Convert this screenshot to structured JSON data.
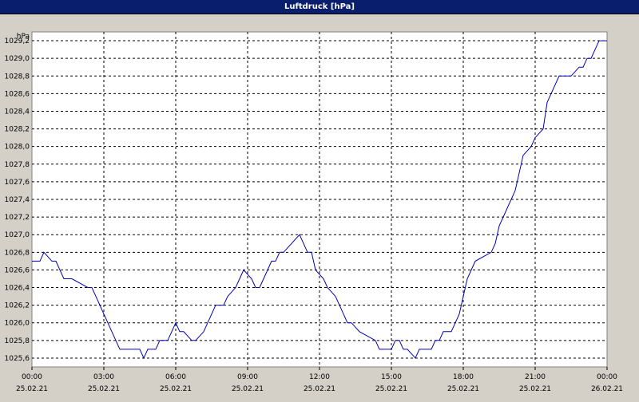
{
  "window": {
    "title": "Luftdruck [hPa]"
  },
  "colors": {
    "titlebar": "#0a1e6e",
    "plot_bg": "#ffffff",
    "line": "#0000b0",
    "grid": "#000000",
    "window_bg": "#d4d0c8"
  },
  "chart_data": {
    "type": "line",
    "title": "Luftdruck [hPa]",
    "unit_label": "hPa",
    "ylim": [
      1025.5,
      1029.3
    ],
    "yticks": [
      1025.6,
      1025.8,
      1026.0,
      1026.2,
      1026.4,
      1026.6,
      1026.8,
      1027.0,
      1027.2,
      1027.4,
      1027.6,
      1027.8,
      1028.0,
      1028.2,
      1028.4,
      1028.6,
      1028.8,
      1029.0,
      1029.2
    ],
    "ytick_labels": [
      "1025,6",
      "1025,8",
      "1026,0",
      "1026,2",
      "1026,4",
      "1026,6",
      "1026,8",
      "1027,0",
      "1027,2",
      "1027,4",
      "1027,6",
      "1027,8",
      "1028,0",
      "1028,2",
      "1028,4",
      "1028,6",
      "1028,8",
      "1029,0",
      "1029,2"
    ],
    "xlim": [
      "25.02.21 00:00",
      "26.02.21 00:00"
    ],
    "xticks": [
      {
        "time": "00:00",
        "date": "25.02.21"
      },
      {
        "time": "03:00",
        "date": "25.02.21"
      },
      {
        "time": "06:00",
        "date": "25.02.21"
      },
      {
        "time": "09:00",
        "date": "25.02.21"
      },
      {
        "time": "12:00",
        "date": "25.02.21"
      },
      {
        "time": "15:00",
        "date": "25.02.21"
      },
      {
        "time": "18:00",
        "date": "25.02.21"
      },
      {
        "time": "21:00",
        "date": "25.02.21"
      },
      {
        "time": "00:00",
        "date": "26.02.21"
      }
    ],
    "grid": true,
    "series": [
      {
        "x": [
          "00:00",
          "00:20",
          "00:30",
          "00:50",
          "01:00",
          "01:20",
          "01:40",
          "02:20",
          "02:30",
          "02:40",
          "02:50",
          "03:00",
          "03:10",
          "03:20",
          "03:30",
          "03:40",
          "04:10",
          "04:20",
          "04:30",
          "04:40",
          "04:50",
          "05:10",
          "05:20",
          "05:40",
          "05:50",
          "06:00",
          "06:10",
          "06:20",
          "06:40",
          "06:50",
          "07:10",
          "07:20",
          "07:30",
          "07:40",
          "08:00",
          "08:10",
          "08:30",
          "08:40",
          "08:50",
          "09:10",
          "09:20",
          "09:30",
          "09:40",
          "09:50",
          "10:00",
          "10:10",
          "10:20",
          "10:30",
          "10:50",
          "11:10",
          "11:30",
          "11:40",
          "11:50",
          "12:10",
          "12:20",
          "12:40",
          "12:50",
          "13:00",
          "13:10",
          "13:20",
          "13:40",
          "14:20",
          "14:30",
          "14:50",
          "15:00",
          "15:10",
          "15:20",
          "15:30",
          "15:40",
          "16:00",
          "16:10",
          "16:20",
          "16:30",
          "16:40",
          "16:50",
          "17:00",
          "17:10",
          "17:30",
          "17:40",
          "17:50",
          "18:00",
          "18:10",
          "18:30",
          "19:10",
          "19:20",
          "19:30",
          "20:00",
          "20:10",
          "20:20",
          "20:30",
          "20:50",
          "21:00",
          "21:20",
          "21:30",
          "21:50",
          "22:00",
          "22:20",
          "22:30",
          "22:50",
          "23:00",
          "23:10",
          "23:20",
          "23:30",
          "23:40",
          "23:50",
          "24:00"
        ],
        "y": [
          1026.7,
          1026.7,
          1026.8,
          1026.7,
          1026.7,
          1026.5,
          1026.5,
          1026.4,
          1026.4,
          1026.3,
          1026.2,
          1026.1,
          1026.0,
          1025.9,
          1025.8,
          1025.7,
          1025.7,
          1025.7,
          1025.7,
          1025.6,
          1025.7,
          1025.7,
          1025.8,
          1025.8,
          1025.9,
          1026.0,
          1025.9,
          1025.9,
          1025.8,
          1025.8,
          1025.9,
          1026.0,
          1026.1,
          1026.2,
          1026.2,
          1026.3,
          1026.4,
          1026.5,
          1026.6,
          1026.5,
          1026.4,
          1026.4,
          1026.5,
          1026.6,
          1026.7,
          1026.7,
          1026.8,
          1026.8,
          1026.9,
          1027.0,
          1026.8,
          1026.8,
          1026.6,
          1026.5,
          1026.4,
          1026.3,
          1026.2,
          1026.1,
          1026.0,
          1026.0,
          1025.9,
          1025.8,
          1025.7,
          1025.7,
          1025.7,
          1025.8,
          1025.8,
          1025.7,
          1025.7,
          1025.6,
          1025.7,
          1025.7,
          1025.7,
          1025.7,
          1025.8,
          1025.8,
          1025.9,
          1025.9,
          1026.0,
          1026.1,
          1026.3,
          1026.5,
          1026.7,
          1026.8,
          1026.9,
          1027.1,
          1027.4,
          1027.5,
          1027.7,
          1027.9,
          1028.0,
          1028.1,
          1028.2,
          1028.5,
          1028.7,
          1028.8,
          1028.8,
          1028.8,
          1028.9,
          1028.9,
          1029.0,
          1029.0,
          1029.1,
          1029.2,
          1029.2,
          1029.2
        ]
      }
    ]
  }
}
